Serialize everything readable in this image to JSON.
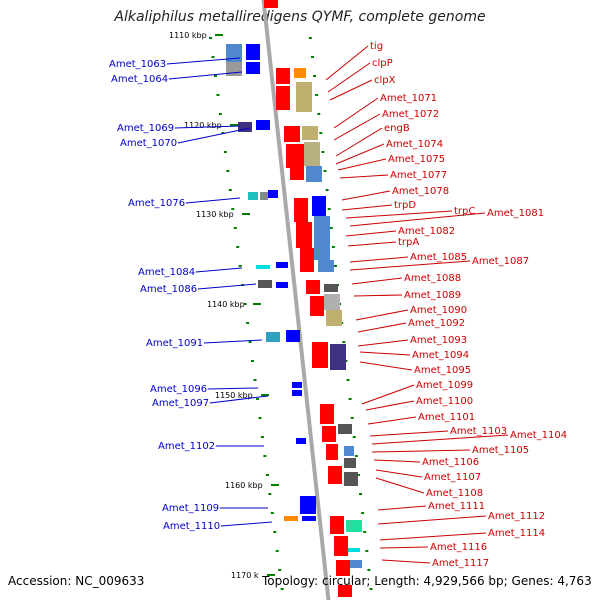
{
  "title": "Alkaliphilus metalliredigens QYMF, complete genome",
  "footer": {
    "accession_label": "Accession:",
    "accession": "NC_009633",
    "topology_label": "Topology:",
    "topology": "circular;",
    "length_label": "Length:",
    "length": "4,929,566 bp;",
    "genes_label": "Genes:",
    "genes": "4,763"
  },
  "colors": {
    "left_label": "#0000cc",
    "right_label": "#cc0000",
    "axis": "#a9a9a9",
    "tick": "#008000",
    "gene_forward": "#ff0000",
    "gene_reverse": "#0000ff"
  },
  "scale_ticks": [
    "1110 kbp",
    "1120 kbp",
    "1130 kbp",
    "1140 kbp",
    "1150 kbp",
    "1160 kbp",
    "1170 k"
  ],
  "left_genes": [
    "Amet_1063",
    "Amet_1064",
    "Amet_1069",
    "Amet_1070",
    "Amet_1076",
    "Amet_1084",
    "Amet_1086",
    "Amet_1091",
    "Amet_1096",
    "Amet_1097",
    "Amet_1102",
    "Amet_1109",
    "Amet_1110"
  ],
  "right_genes": [
    "tig",
    "clpP",
    "clpX",
    "Amet_1071",
    "Amet_1072",
    "engB",
    "Amet_1074",
    "Amet_1075",
    "Amet_1077",
    "Amet_1078",
    "trpD",
    "trpC",
    "Amet_1081",
    "Amet_1082",
    "trpA",
    "Amet_1085",
    "Amet_1087",
    "Amet_1088",
    "Amet_1089",
    "Amet_1090",
    "Amet_1092",
    "Amet_1093",
    "Amet_1094",
    "Amet_1095",
    "Amet_1099",
    "Amet_1100",
    "Amet_1101",
    "Amet_1103",
    "Amet_1104",
    "Amet_1105",
    "Amet_1106",
    "Amet_1107",
    "Amet_1108",
    "Amet_1111",
    "Amet_1112",
    "Amet_1114",
    "Amet_1116",
    "Amet_1117"
  ]
}
